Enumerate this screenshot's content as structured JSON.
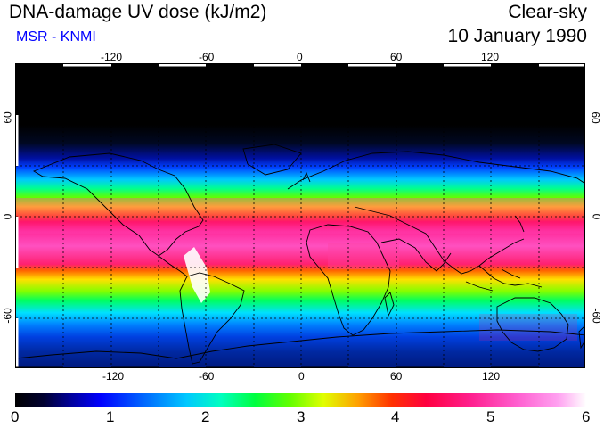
{
  "header": {
    "title": "DNA-damage UV dose (kJ/m2)",
    "subtitle": "MSR - KNMI",
    "sky_condition": "Clear-sky",
    "date": "10 January 1990"
  },
  "map": {
    "projection": "equirectangular",
    "lon_range": [
      -180,
      180
    ],
    "lat_range": [
      -90,
      90
    ],
    "longitude_ticks": [
      "-120",
      "-60",
      "0",
      "60",
      "120"
    ],
    "latitude_ticks_left": [
      "60",
      "0",
      "-60"
    ],
    "latitude_ticks_right": [
      "60",
      "0",
      "-60"
    ],
    "gridlines": "dashed",
    "colors": {
      "coastline": "#000000",
      "grid": "#000000"
    }
  },
  "colorbar": {
    "labels": [
      "0",
      "1",
      "2",
      "3",
      "4",
      "5",
      "6"
    ],
    "range": [
      0,
      6
    ]
  }
}
